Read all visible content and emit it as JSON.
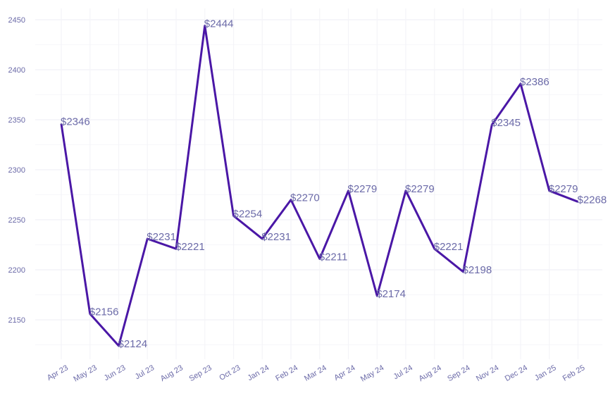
{
  "chart_data": {
    "type": "line",
    "title": "",
    "xlabel": "",
    "ylabel": "",
    "categories": [
      "Apr 23",
      "May 23",
      "Jun 23",
      "Jul 23",
      "Aug 23",
      "Sep 23",
      "Oct 23",
      "Jan 24",
      "Feb 24",
      "Mar 24",
      "Apr 24",
      "May 24",
      "Jul 24",
      "Aug 24",
      "Sep 24",
      "Nov 24",
      "Dec 24",
      "Jan 25",
      "Feb 25"
    ],
    "values": [
      2346,
      2156,
      2124,
      2231,
      2221,
      2444,
      2254,
      2231,
      2270,
      2211,
      2279,
      2174,
      2279,
      2221,
      2198,
      2345,
      2386,
      2279,
      2268
    ],
    "labels": [
      "$2346",
      "$2156",
      "$2124",
      "$2231",
      "$2221",
      "$2444",
      "$2254",
      "$2231",
      "$2270",
      "$2211",
      "$2279",
      "$2174",
      "$2279",
      "$2221",
      "$2198",
      "$2345",
      "$2386",
      "$2279",
      "$2268"
    ],
    "yticks": [
      2150,
      2200,
      2250,
      2300,
      2350,
      2400,
      2450
    ],
    "ylim": [
      2110,
      2460
    ],
    "grid": true,
    "line_color": "#4a17a6",
    "label_color": "#6b6aa8",
    "grid_color": "#f4f4f8"
  }
}
